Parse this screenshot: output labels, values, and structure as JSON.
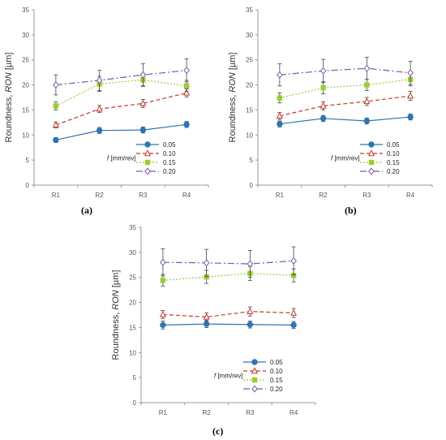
{
  "series_styles": [
    {
      "color": "#2e75b6",
      "marker": "circle",
      "dash": ""
    },
    {
      "color": "#c0392b",
      "marker": "triangle-open",
      "dash": "5,3"
    },
    {
      "color": "#9acd32",
      "marker": "square",
      "dash": "2,2"
    },
    {
      "color": "#7b5aa6",
      "marker": "diamond-open",
      "dash": "8,3,2,3"
    }
  ],
  "chart_data": [
    {
      "type": "line",
      "caption": "(a)",
      "categories": [
        "R1",
        "R2",
        "R3",
        "R4"
      ],
      "ylabel_prefix": "Roundness, ",
      "ylabel_italic": "RON",
      "ylabel_suffix": " [µm]",
      "ylim": [
        0,
        35
      ],
      "yticks": [
        0,
        5,
        10,
        15,
        20,
        25,
        30,
        35
      ],
      "legend_title_italic": "f",
      "legend_title_rest": " [mm/rev]",
      "series": [
        {
          "name": "0.05",
          "values": [
            9.0,
            10.9,
            11.0,
            12.1
          ],
          "err": [
            0.5,
            0.6,
            0.6,
            0.6
          ]
        },
        {
          "name": "0.10",
          "values": [
            12.0,
            15.2,
            16.3,
            18.4
          ],
          "err": [
            0.6,
            0.7,
            0.8,
            0.8
          ]
        },
        {
          "name": "0.15",
          "values": [
            15.8,
            20.2,
            21.0,
            19.8
          ],
          "err": [
            0.8,
            1.5,
            1.3,
            1.1
          ]
        },
        {
          "name": "0.20",
          "values": [
            20.0,
            20.9,
            22.0,
            22.9
          ],
          "err": [
            2.0,
            2.0,
            2.2,
            2.3
          ]
        }
      ]
    },
    {
      "type": "line",
      "caption": "(b)",
      "categories": [
        "R1",
        "R2",
        "R3",
        "R4"
      ],
      "ylabel_prefix": "Roundness, ",
      "ylabel_italic": "RON",
      "ylabel_suffix": " [µm]",
      "ylim": [
        0,
        35
      ],
      "yticks": [
        0,
        5,
        10,
        15,
        20,
        25,
        30,
        35
      ],
      "legend_title_italic": "f",
      "legend_title_rest": " [mm/rev]",
      "series": [
        {
          "name": "0.05",
          "values": [
            12.2,
            13.3,
            12.8,
            13.6
          ],
          "err": [
            0.6,
            0.6,
            0.6,
            0.6
          ]
        },
        {
          "name": "0.10",
          "values": [
            13.8,
            15.8,
            16.7,
            17.8
          ],
          "err": [
            0.7,
            0.8,
            0.8,
            0.9
          ]
        },
        {
          "name": "0.15",
          "values": [
            17.4,
            19.4,
            20.0,
            21.1
          ],
          "err": [
            1.0,
            1.2,
            1.1,
            1.3
          ]
        },
        {
          "name": "0.20",
          "values": [
            22.0,
            22.8,
            23.3,
            22.4
          ],
          "err": [
            2.2,
            2.3,
            2.2,
            2.3
          ]
        }
      ]
    },
    {
      "type": "line",
      "caption": "(c)",
      "categories": [
        "R1",
        "R2",
        "R3",
        "R4"
      ],
      "ylabel_prefix": "Roundness, ",
      "ylabel_italic": "RON",
      "ylabel_suffix": " [µm]",
      "ylim": [
        0,
        35
      ],
      "yticks": [
        0,
        5,
        10,
        15,
        20,
        25,
        30,
        35
      ],
      "legend_title_italic": "f",
      "legend_title_rest": " [mm/rev]",
      "series": [
        {
          "name": "0.05",
          "values": [
            15.5,
            15.7,
            15.6,
            15.5
          ],
          "err": [
            0.8,
            0.7,
            0.7,
            0.7
          ]
        },
        {
          "name": "0.10",
          "values": [
            17.6,
            17.1,
            18.2,
            17.9
          ],
          "err": [
            0.8,
            0.8,
            0.9,
            0.9
          ]
        },
        {
          "name": "0.15",
          "values": [
            24.4,
            25.1,
            25.8,
            25.4
          ],
          "err": [
            1.2,
            1.3,
            1.4,
            1.3
          ]
        },
        {
          "name": "0.20",
          "values": [
            28.0,
            27.9,
            27.7,
            28.3
          ],
          "err": [
            2.7,
            2.7,
            2.7,
            2.8
          ]
        }
      ]
    }
  ]
}
